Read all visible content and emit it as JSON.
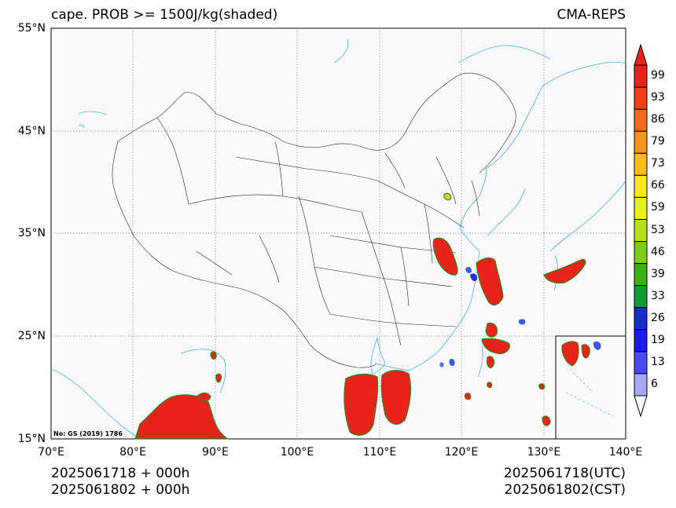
{
  "title_left": "cape. PROB >= 1500J/kg(shaded)",
  "title_right": "CMA-REPS",
  "lat_labels": [
    "55°N",
    "45°N",
    "35°N",
    "25°N",
    "15°N"
  ],
  "lon_labels": [
    "70°E",
    "80°E",
    "90°E",
    "100°E",
    "110°E",
    "120°E",
    "130°E",
    "140°E"
  ],
  "stamp": "No: GS (2019) 1786",
  "footer_left": [
    "2025061718  +  000h",
    "2025061802  +  000h"
  ],
  "footer_right": [
    "2025061718(UTC)",
    "2025061802(CST)"
  ],
  "colorbar": {
    "labels": [
      "99",
      "93",
      "86",
      "79",
      "73",
      "66",
      "59",
      "53",
      "46",
      "39",
      "33",
      "26",
      "19",
      "13",
      "6"
    ],
    "colors": [
      "#e8231a",
      "#f0401a",
      "#f56a1a",
      "#f7941d",
      "#f9bd1a",
      "#fbe81a",
      "#e8f01a",
      "#b8e01a",
      "#7ccb1a",
      "#3cb01a",
      "#159a35",
      "#1530c8",
      "#1a1af5",
      "#4a4af5",
      "#a8a8f8"
    ],
    "over_color": "#e8231a",
    "under_color": "#ffffff"
  },
  "colors": {
    "map_bg": "#fbf9fc",
    "coast": "#3bb4e5",
    "border": "#222222",
    "grid": "#888888"
  }
}
